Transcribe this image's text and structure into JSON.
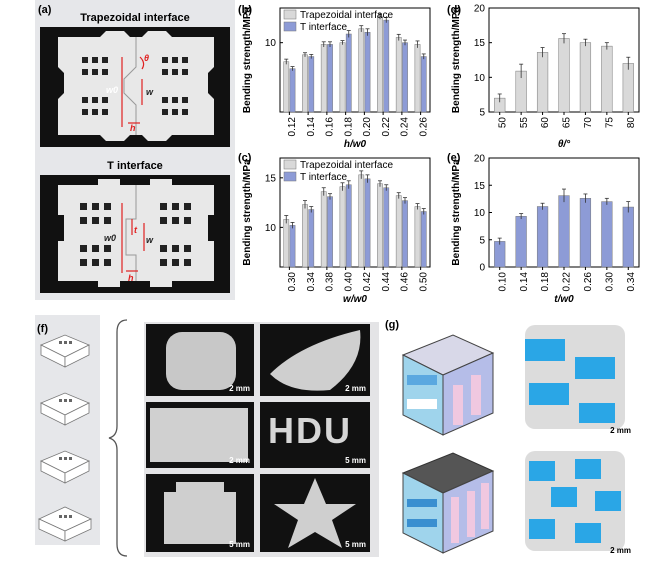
{
  "panels": {
    "a": {
      "label": "(a)",
      "title_top": "Trapezoidal interface",
      "title_bottom": "T interface",
      "dims_top": {
        "theta": "θ",
        "w0": "w0",
        "w": "w",
        "h": "h"
      },
      "dims_bottom": {
        "t": "t",
        "w0": "w0",
        "w": "w",
        "h": "h"
      }
    },
    "b": {
      "label": "(b)"
    },
    "c": {
      "label": "(c)"
    },
    "d": {
      "label": "(d)"
    },
    "e": {
      "label": "(e)"
    },
    "f": {
      "label": "(f)",
      "scales": [
        "2 mm",
        "2 mm",
        "2 mm",
        "5 mm",
        "5 mm",
        "5 mm"
      ],
      "text_sample": "HDU"
    },
    "g": {
      "label": "(g)",
      "scales": [
        "2 mm",
        "2 mm"
      ]
    }
  },
  "colors": {
    "trap": "#d9d9d9",
    "tint": "#8d9bd6",
    "single": "#d9d9d9",
    "blue": "#8d9bd6",
    "err": "#333333"
  },
  "chart_data": [
    {
      "id": "b",
      "type": "bar",
      "ylabel": "Bending strength/MPa",
      "xlabel": "h/w0",
      "xlabel_main": "h",
      "xlabel_sub": "w",
      "xlabel_subsub": "0",
      "ylim": [
        6,
        12
      ],
      "yticks": [
        10
      ],
      "categories": [
        "0.12",
        "0.14",
        "0.16",
        "0.18",
        "0.20",
        "0.22",
        "0.24",
        "0.26"
      ],
      "series": [
        {
          "name": "Trapezoidal interface",
          "values": [
            8.9,
            9.3,
            9.9,
            10.0,
            10.8,
            11.5,
            10.3,
            9.9
          ],
          "err": [
            0.15,
            0.12,
            0.15,
            0.12,
            0.18,
            0.15,
            0.18,
            0.2
          ]
        },
        {
          "name": "T interface",
          "values": [
            8.5,
            9.2,
            9.9,
            10.5,
            10.6,
            11.3,
            10.0,
            9.2
          ],
          "err": [
            0.12,
            0.12,
            0.15,
            0.2,
            0.2,
            0.15,
            0.15,
            0.15
          ]
        }
      ]
    },
    {
      "id": "c",
      "type": "bar",
      "ylabel": "Bending strength/MPa",
      "xlabel": "w/w0",
      "xlabel_main": "w",
      "xlabel_sub": "w",
      "xlabel_subsub": "0",
      "ylim": [
        6,
        17
      ],
      "yticks": [
        10,
        15
      ],
      "categories": [
        "0.30",
        "0.34",
        "0.38",
        "0.40",
        "0.42",
        "0.44",
        "0.46",
        "0.50"
      ],
      "series": [
        {
          "name": "Trapezoidal interface",
          "values": [
            10.8,
            12.3,
            13.6,
            14.1,
            15.3,
            14.4,
            13.2,
            12.1
          ],
          "err": [
            0.4,
            0.4,
            0.4,
            0.4,
            0.4,
            0.3,
            0.3,
            0.3
          ]
        },
        {
          "name": "T interface",
          "values": [
            10.2,
            11.8,
            13.1,
            14.3,
            14.9,
            14.0,
            12.7,
            11.6
          ],
          "err": [
            0.3,
            0.3,
            0.3,
            0.4,
            0.4,
            0.3,
            0.3,
            0.3
          ]
        }
      ]
    },
    {
      "id": "d",
      "type": "bar",
      "ylabel": "Bending strength/MPa",
      "xlabel": "θ/°",
      "xlabel_main": "θ",
      "xlabel_sub": "°",
      "xlabel_subsub": "",
      "ylim": [
        5,
        20
      ],
      "yticks": [
        5,
        10,
        15,
        20
      ],
      "categories": [
        "50",
        "55",
        "60",
        "65",
        "70",
        "75",
        "80"
      ],
      "series": [
        {
          "values": [
            7.0,
            10.9,
            13.6,
            15.6,
            15.0,
            14.5,
            12.0
          ],
          "err": [
            0.6,
            1.0,
            0.7,
            0.7,
            0.5,
            0.5,
            0.9
          ]
        }
      ]
    },
    {
      "id": "e",
      "type": "bar",
      "ylabel": "Bending strength/MPa",
      "xlabel": "t/w0",
      "xlabel_main": "t",
      "xlabel_sub": "w",
      "xlabel_subsub": "0",
      "ylim": [
        0,
        20
      ],
      "yticks": [
        0,
        5,
        10,
        15,
        20
      ],
      "categories": [
        "0.10",
        "0.14",
        "0.18",
        "0.22",
        "0.26",
        "0.30",
        "0.34"
      ],
      "series": [
        {
          "values": [
            4.7,
            9.3,
            11.1,
            13.1,
            12.6,
            12.0,
            11.0
          ],
          "err": [
            0.6,
            0.5,
            0.6,
            1.2,
            0.8,
            0.6,
            1.0
          ]
        }
      ]
    }
  ]
}
